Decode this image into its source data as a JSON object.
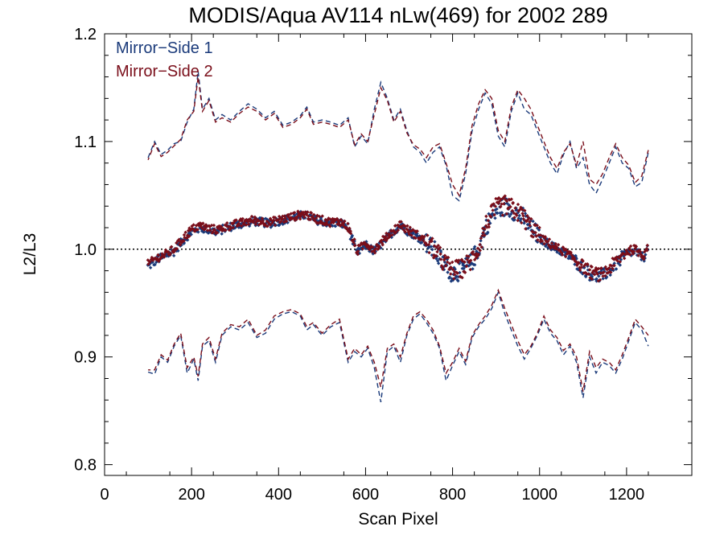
{
  "chart_data": {
    "type": "scatter",
    "title": "MODIS/Aqua AV114 nLw(469) for 2002 289",
    "xlabel": "Scan Pixel",
    "ylabel": "L2/L3",
    "xlim": [
      0,
      1350
    ],
    "ylim": [
      0.79,
      1.2
    ],
    "xticks": [
      0,
      200,
      400,
      600,
      800,
      1000,
      1200
    ],
    "yticks": [
      0.8,
      0.9,
      1.0,
      1.1,
      1.2
    ],
    "xtick_labels": [
      "0",
      "200",
      "400",
      "600",
      "800",
      "1000",
      "1200"
    ],
    "ytick_labels": [
      "0.8",
      "0.9",
      "1.0",
      "1.1",
      "1.2"
    ],
    "reference_line": 1.0,
    "legend_position": "top-left",
    "series": [
      {
        "name": "Mirror−Side 1",
        "color": "#1a3a7a",
        "median_points": {
          "x": [
            100,
            120,
            140,
            160,
            180,
            200,
            220,
            240,
            260,
            280,
            300,
            320,
            340,
            360,
            380,
            400,
            420,
            440,
            460,
            480,
            500,
            520,
            540,
            560,
            580,
            600,
            620,
            640,
            660,
            680,
            700,
            720,
            740,
            760,
            780,
            800,
            820,
            840,
            860,
            880,
            900,
            920,
            940,
            960,
            980,
            1000,
            1020,
            1040,
            1060,
            1080,
            1100,
            1120,
            1140,
            1160,
            1180,
            1200,
            1220,
            1240,
            1250
          ],
          "y": [
            0.984,
            0.99,
            0.994,
            0.998,
            1.008,
            1.016,
            1.02,
            1.018,
            1.016,
            1.02,
            1.022,
            1.024,
            1.026,
            1.025,
            1.024,
            1.026,
            1.028,
            1.03,
            1.032,
            1.028,
            1.026,
            1.024,
            1.025,
            1.02,
            0.996,
            1.004,
            0.998,
            1.006,
            1.015,
            1.022,
            1.016,
            1.012,
            1.006,
            0.998,
            0.986,
            0.978,
            0.98,
            0.986,
            1.0,
            1.024,
            1.036,
            1.04,
            1.036,
            1.03,
            1.02,
            1.01,
            1.005,
            1.0,
            0.996,
            0.99,
            0.982,
            0.976,
            0.974,
            0.98,
            0.988,
            0.996,
            0.998,
            0.992,
            1.004
          ]
        },
        "upper_envelope": {
          "x": [
            100,
            115,
            130,
            145,
            160,
            175,
            190,
            205,
            215,
            225,
            240,
            255,
            270,
            290,
            310,
            330,
            350,
            370,
            390,
            410,
            430,
            450,
            465,
            480,
            500,
            520,
            540,
            560,
            575,
            590,
            605,
            620,
            635,
            650,
            665,
            680,
            695,
            710,
            725,
            740,
            755,
            770,
            785,
            800,
            815,
            830,
            845,
            860,
            875,
            890,
            905,
            920,
            935,
            950,
            965,
            980,
            995,
            1010,
            1025,
            1040,
            1055,
            1070,
            1085,
            1100,
            1115,
            1130,
            1145,
            1160,
            1175,
            1190,
            1205,
            1220,
            1235,
            1250
          ],
          "y": [
            1.085,
            1.1,
            1.088,
            1.092,
            1.098,
            1.1,
            1.118,
            1.13,
            1.165,
            1.13,
            1.14,
            1.12,
            1.125,
            1.12,
            1.128,
            1.135,
            1.13,
            1.122,
            1.128,
            1.115,
            1.118,
            1.124,
            1.132,
            1.118,
            1.12,
            1.118,
            1.115,
            1.122,
            1.095,
            1.105,
            1.098,
            1.13,
            1.155,
            1.14,
            1.12,
            1.13,
            1.11,
            1.095,
            1.09,
            1.08,
            1.09,
            1.095,
            1.078,
            1.05,
            1.045,
            1.07,
            1.11,
            1.13,
            1.145,
            1.135,
            1.105,
            1.095,
            1.128,
            1.145,
            1.13,
            1.125,
            1.11,
            1.095,
            1.08,
            1.07,
            1.088,
            1.1,
            1.075,
            1.085,
            1.06,
            1.052,
            1.065,
            1.08,
            1.095,
            1.08,
            1.075,
            1.058,
            1.062,
            1.09
          ]
        },
        "lower_envelope": {
          "x": [
            100,
            115,
            130,
            145,
            160,
            175,
            190,
            205,
            215,
            225,
            240,
            255,
            270,
            290,
            310,
            330,
            350,
            370,
            390,
            410,
            430,
            450,
            465,
            480,
            500,
            520,
            540,
            560,
            575,
            590,
            605,
            620,
            635,
            650,
            665,
            680,
            695,
            710,
            725,
            740,
            755,
            770,
            785,
            800,
            815,
            830,
            845,
            860,
            875,
            890,
            905,
            920,
            935,
            950,
            965,
            980,
            995,
            1010,
            1025,
            1040,
            1055,
            1070,
            1085,
            1100,
            1115,
            1130,
            1145,
            1160,
            1175,
            1190,
            1205,
            1220,
            1235,
            1250
          ],
          "y": [
            0.886,
            0.884,
            0.9,
            0.895,
            0.91,
            0.92,
            0.885,
            0.898,
            0.878,
            0.91,
            0.915,
            0.895,
            0.92,
            0.928,
            0.925,
            0.932,
            0.918,
            0.922,
            0.935,
            0.94,
            0.942,
            0.938,
            0.925,
            0.93,
            0.92,
            0.928,
            0.932,
            0.895,
            0.905,
            0.9,
            0.908,
            0.89,
            0.858,
            0.905,
            0.91,
            0.895,
            0.92,
            0.935,
            0.94,
            0.932,
            0.922,
            0.908,
            0.878,
            0.892,
            0.905,
            0.893,
            0.918,
            0.928,
            0.935,
            0.945,
            0.96,
            0.94,
            0.925,
            0.91,
            0.898,
            0.908,
            0.92,
            0.935,
            0.922,
            0.915,
            0.902,
            0.91,
            0.895,
            0.862,
            0.9,
            0.885,
            0.895,
            0.892,
            0.885,
            0.898,
            0.915,
            0.932,
            0.925,
            0.91
          ]
        }
      },
      {
        "name": "Mirror−Side 2",
        "color": "#7a0e1a",
        "median_points": {
          "x": [
            100,
            120,
            140,
            160,
            180,
            200,
            220,
            240,
            260,
            280,
            300,
            320,
            340,
            360,
            380,
            400,
            420,
            440,
            460,
            480,
            500,
            520,
            540,
            560,
            580,
            600,
            620,
            640,
            660,
            680,
            700,
            720,
            740,
            760,
            780,
            800,
            820,
            840,
            860,
            880,
            900,
            920,
            940,
            960,
            980,
            1000,
            1020,
            1040,
            1060,
            1080,
            1100,
            1120,
            1140,
            1160,
            1180,
            1200,
            1220,
            1240,
            1250
          ],
          "y": [
            0.986,
            0.992,
            0.995,
            1.0,
            1.01,
            1.018,
            1.022,
            1.019,
            1.018,
            1.021,
            1.023,
            1.025,
            1.027,
            1.026,
            1.025,
            1.027,
            1.029,
            1.031,
            1.033,
            1.029,
            1.027,
            1.025,
            1.026,
            1.021,
            0.998,
            1.006,
            1.0,
            1.008,
            1.016,
            1.023,
            1.017,
            1.013,
            1.007,
            0.999,
            0.988,
            0.98,
            0.982,
            0.988,
            1.002,
            1.026,
            1.038,
            1.041,
            1.037,
            1.031,
            1.021,
            1.011,
            1.006,
            1.001,
            0.997,
            0.991,
            0.984,
            0.978,
            0.976,
            0.982,
            0.99,
            0.998,
            1.0,
            0.994,
            1.006
          ]
        },
        "upper_envelope": {
          "x": [
            100,
            115,
            130,
            145,
            160,
            175,
            190,
            205,
            215,
            225,
            240,
            255,
            270,
            290,
            310,
            330,
            350,
            370,
            390,
            410,
            430,
            450,
            465,
            480,
            500,
            520,
            540,
            560,
            575,
            590,
            605,
            620,
            635,
            650,
            665,
            680,
            695,
            710,
            725,
            740,
            755,
            770,
            785,
            800,
            815,
            830,
            845,
            860,
            875,
            890,
            905,
            920,
            935,
            950,
            965,
            980,
            995,
            1010,
            1025,
            1040,
            1055,
            1070,
            1085,
            1100,
            1115,
            1130,
            1145,
            1160,
            1175,
            1190,
            1205,
            1220,
            1235,
            1250
          ],
          "y": [
            1.083,
            1.098,
            1.086,
            1.09,
            1.096,
            1.102,
            1.12,
            1.128,
            1.16,
            1.128,
            1.138,
            1.118,
            1.122,
            1.118,
            1.126,
            1.132,
            1.128,
            1.12,
            1.126,
            1.113,
            1.116,
            1.122,
            1.13,
            1.116,
            1.118,
            1.116,
            1.113,
            1.12,
            1.097,
            1.107,
            1.1,
            1.125,
            1.15,
            1.138,
            1.118,
            1.128,
            1.108,
            1.097,
            1.093,
            1.085,
            1.095,
            1.098,
            1.08,
            1.06,
            1.05,
            1.075,
            1.115,
            1.135,
            1.148,
            1.14,
            1.11,
            1.1,
            1.132,
            1.148,
            1.14,
            1.13,
            1.115,
            1.1,
            1.085,
            1.075,
            1.09,
            1.098,
            1.078,
            1.1,
            1.065,
            1.06,
            1.07,
            1.085,
            1.098,
            1.085,
            1.078,
            1.062,
            1.068,
            1.092
          ]
        },
        "lower_envelope": {
          "x": [
            100,
            115,
            130,
            145,
            160,
            175,
            190,
            205,
            215,
            225,
            240,
            255,
            270,
            290,
            310,
            330,
            350,
            370,
            390,
            410,
            430,
            450,
            465,
            480,
            500,
            520,
            540,
            560,
            575,
            590,
            605,
            620,
            635,
            650,
            665,
            680,
            695,
            710,
            725,
            740,
            755,
            770,
            785,
            800,
            815,
            830,
            845,
            860,
            875,
            890,
            905,
            920,
            935,
            950,
            965,
            980,
            995,
            1010,
            1025,
            1040,
            1055,
            1070,
            1085,
            1100,
            1115,
            1130,
            1145,
            1160,
            1175,
            1190,
            1205,
            1220,
            1235,
            1250
          ],
          "y": [
            0.888,
            0.888,
            0.902,
            0.897,
            0.912,
            0.922,
            0.89,
            0.9,
            0.882,
            0.912,
            0.918,
            0.898,
            0.922,
            0.93,
            0.928,
            0.935,
            0.92,
            0.925,
            0.938,
            0.942,
            0.944,
            0.94,
            0.928,
            0.932,
            0.922,
            0.93,
            0.935,
            0.898,
            0.908,
            0.902,
            0.91,
            0.895,
            0.872,
            0.908,
            0.912,
            0.9,
            0.922,
            0.938,
            0.942,
            0.935,
            0.925,
            0.91,
            0.885,
            0.895,
            0.908,
            0.896,
            0.92,
            0.93,
            0.938,
            0.948,
            0.962,
            0.945,
            0.93,
            0.915,
            0.902,
            0.91,
            0.922,
            0.938,
            0.925,
            0.918,
            0.906,
            0.912,
            0.9,
            0.868,
            0.905,
            0.89,
            0.898,
            0.895,
            0.888,
            0.902,
            0.918,
            0.935,
            0.928,
            0.92
          ]
        }
      }
    ]
  }
}
